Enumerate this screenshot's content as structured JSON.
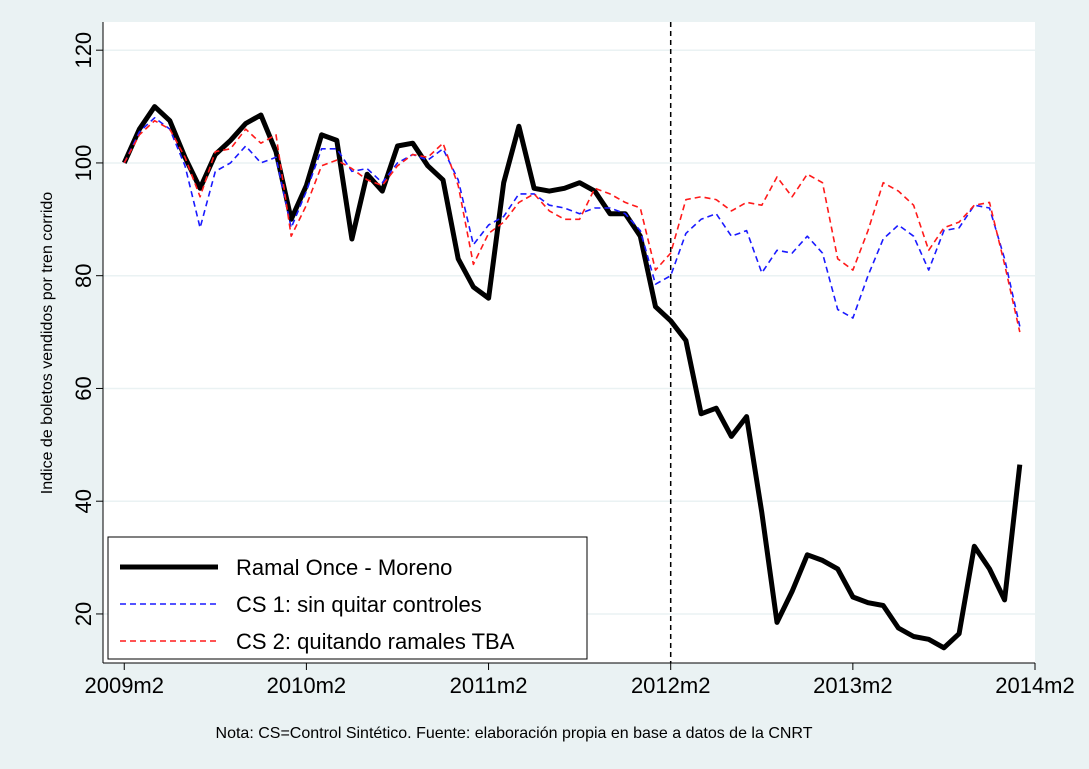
{
  "chart_data": {
    "type": "line",
    "y_label": "Indice de boletos vendidos por tren corrido",
    "note": "Nota: CS=Control Sintético. Fuente: elaboración propia en base a datos de la CNRT",
    "x": [
      589,
      590,
      591,
      592,
      593,
      594,
      595,
      596,
      597,
      598,
      599,
      600,
      601,
      602,
      603,
      604,
      605,
      606,
      607,
      608,
      609,
      610,
      611,
      612,
      613,
      614,
      615,
      616,
      617,
      618,
      619,
      620,
      621,
      622,
      623,
      624,
      625,
      626,
      627,
      628,
      629,
      630,
      631,
      632,
      633,
      634,
      635,
      636,
      637,
      638,
      639,
      640,
      641,
      642,
      643,
      644,
      645,
      646,
      647,
      648
    ],
    "xlim": [
      587.6,
      649
    ],
    "xticks": [
      {
        "value": 589,
        "label": "2009m2"
      },
      {
        "value": 601,
        "label": "2010m2"
      },
      {
        "value": 613,
        "label": "2011m2"
      },
      {
        "value": 625,
        "label": "2012m2"
      },
      {
        "value": 637,
        "label": "2013m2"
      },
      {
        "value": 649,
        "label": "2014m2"
      }
    ],
    "xline": 625,
    "ylim": [
      11.3,
      125
    ],
    "yticks": [
      20,
      40,
      60,
      80,
      100,
      120
    ],
    "grid": true,
    "legend": "bottom-left",
    "series": [
      {
        "name": "Ramal Once - Moreno",
        "color": "#000000",
        "width": 5,
        "dashed": false,
        "values": [
          100,
          106,
          110,
          107.5,
          101,
          95.5,
          101.5,
          104,
          107,
          108.5,
          102,
          90,
          96,
          105,
          104,
          86.5,
          98,
          95,
          103,
          103.5,
          99.5,
          97,
          83,
          78,
          76,
          96.5,
          106.5,
          95.5,
          95,
          95.5,
          96.5,
          95,
          91,
          91,
          87,
          74.5,
          72,
          68.5,
          55.5,
          56.5,
          51.5,
          55,
          38,
          18.5,
          24,
          30.5,
          29.5,
          28,
          23,
          22,
          21.5,
          17.5,
          16,
          15.5,
          14,
          16.5,
          32,
          28,
          22.5,
          46.5
        ]
      },
      {
        "name": "CS 1: sin quitar controles",
        "color": "#1a1aff",
        "width": 1.6,
        "dashed": true,
        "values": [
          100,
          105.5,
          108,
          106,
          99.5,
          88.5,
          98.5,
          100,
          103,
          100,
          101,
          88.5,
          95,
          102.5,
          102.5,
          98.5,
          99,
          96.5,
          100,
          101.5,
          100.5,
          102.5,
          97,
          85.5,
          89,
          90.5,
          94.5,
          94.5,
          92.5,
          92,
          91,
          92,
          92,
          91,
          88,
          78.5,
          80,
          87.5,
          90,
          91,
          87,
          88,
          80.5,
          84.5,
          84,
          87,
          84,
          74,
          72.5,
          80,
          86.5,
          89,
          87,
          81,
          88,
          88.5,
          92.5,
          92,
          83,
          71
        ]
      },
      {
        "name": "CS 2: quitando ramales TBA",
        "color": "#ff1a1a",
        "width": 1.6,
        "dashed": true,
        "values": [
          100,
          105,
          107.5,
          106,
          101,
          94,
          102,
          102.5,
          106,
          103.5,
          105,
          87,
          92.5,
          99.5,
          100.5,
          99,
          97,
          96,
          99.5,
          101.5,
          101,
          103.5,
          96,
          82,
          87.5,
          89.5,
          93,
          94.5,
          91.5,
          90,
          90,
          95.5,
          94.5,
          93,
          92,
          81,
          84,
          93.5,
          94,
          93.5,
          91.5,
          93,
          92.5,
          97.5,
          94,
          98,
          96.5,
          83,
          81,
          88,
          96.5,
          95,
          92.5,
          84.5,
          88.5,
          89.5,
          92.5,
          93,
          82,
          70
        ]
      }
    ]
  }
}
